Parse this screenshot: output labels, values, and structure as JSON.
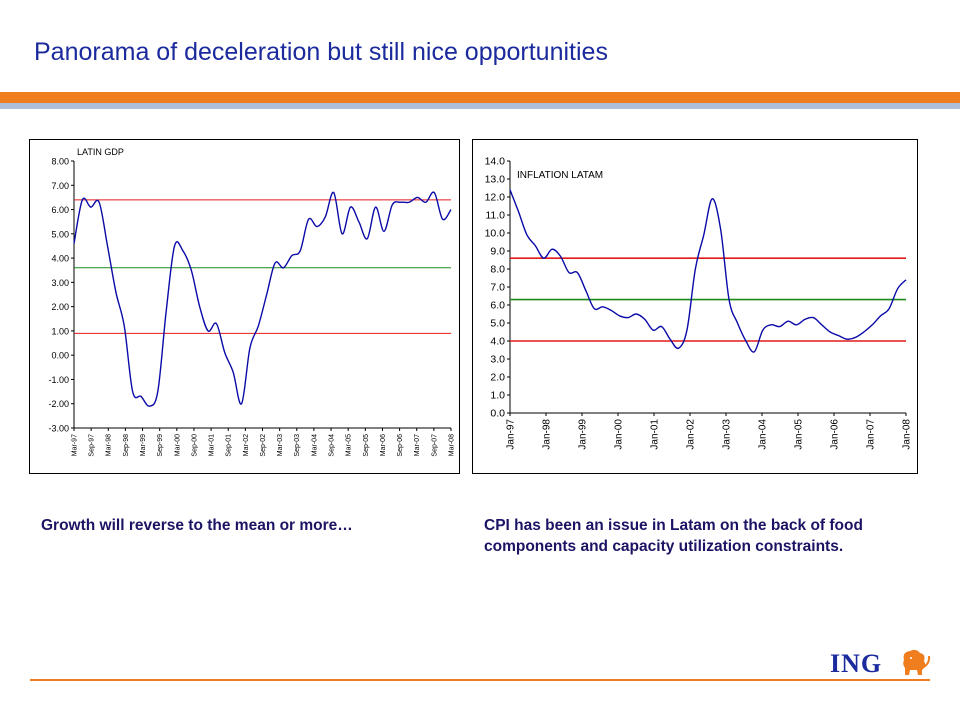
{
  "slide": {
    "title": "Panorama of deceleration but still nice opportunities",
    "caption_left": "Growth will reverse to the mean or more…",
    "caption_right": "CPI has been an issue in Latam on the back of food components and capacity utilization constraints.",
    "logo_text": "ING",
    "colors": {
      "title": "#1b2a9c",
      "accent_orange": "#f07d1e",
      "accent_blue": "#aebfd9",
      "series": "#0a0aa8",
      "line_red": "#e31a1c",
      "line_green": "#1b8a1b"
    }
  },
  "chart_data": [
    {
      "type": "line",
      "title": "LATIN GDP",
      "xlabel": "",
      "ylabel": "",
      "ylim": [
        -3,
        8
      ],
      "y_ticks": [
        -3,
        -2,
        -1,
        0,
        1,
        2,
        3,
        4,
        5,
        6,
        7,
        8
      ],
      "y_tick_labels": [
        "-3.00",
        "-2.00",
        "-1.00",
        "0.00",
        "1.00",
        "2.00",
        "3.00",
        "4.00",
        "5.00",
        "6.00",
        "7.00",
        "8.00"
      ],
      "x_tick_labels": [
        "Mar-97",
        "Sep-97",
        "Mar-98",
        "Sep-98",
        "Mar-99",
        "Sep-99",
        "Mar-00",
        "Sep-00",
        "Mar-01",
        "Sep-01",
        "Mar-02",
        "Sep-02",
        "Mar-03",
        "Sep-03",
        "Mar-04",
        "Sep-04",
        "Mar-05",
        "Sep-05",
        "Mar-06",
        "Sep-06",
        "Mar-07",
        "Sep-07",
        "Mar-08"
      ],
      "grid": false,
      "legend": "none",
      "series": [
        {
          "x": [
            "Mar-97",
            "Jun-97",
            "Sep-97",
            "Dec-97",
            "Mar-98",
            "Jun-98",
            "Sep-98",
            "Dec-98",
            "Mar-99",
            "Jun-99",
            "Sep-99",
            "Dec-99",
            "Mar-00",
            "Jun-00",
            "Sep-00",
            "Dec-00",
            "Mar-01",
            "Jun-01",
            "Sep-01",
            "Dec-01",
            "Mar-02",
            "Jun-02",
            "Sep-02",
            "Dec-02",
            "Mar-03",
            "Jun-03",
            "Sep-03",
            "Dec-03",
            "Mar-04",
            "Jun-04",
            "Sep-04",
            "Dec-04",
            "Mar-05",
            "Jun-05",
            "Sep-05",
            "Dec-05",
            "Mar-06",
            "Jun-06",
            "Sep-06",
            "Dec-06",
            "Mar-07",
            "Jun-07",
            "Sep-07",
            "Dec-07",
            "Mar-08",
            "Jun-08"
          ],
          "values": [
            4.6,
            6.4,
            6.1,
            6.3,
            4.5,
            2.6,
            1.2,
            -1.5,
            -1.7,
            -2.1,
            -1.5,
            1.8,
            4.5,
            4.3,
            3.5,
            2.0,
            1.0,
            1.3,
            0.1,
            -0.7,
            -2.0,
            0.3,
            1.2,
            2.5,
            3.8,
            3.6,
            4.1,
            4.3,
            5.6,
            5.3,
            5.7,
            6.7,
            5.0,
            6.1,
            5.5,
            4.8,
            6.1,
            5.1,
            6.2,
            6.3,
            6.3,
            6.5,
            6.3,
            6.7,
            5.6,
            6.0
          ]
        }
      ],
      "reference_lines": [
        6.4,
        3.6,
        0.9
      ]
    },
    {
      "type": "line",
      "title": "INFLATION LATAM",
      "xlabel": "",
      "ylabel": "",
      "ylim": [
        0,
        14
      ],
      "y_ticks": [
        0,
        1,
        2,
        3,
        4,
        5,
        6,
        7,
        8,
        9,
        10,
        11,
        12,
        13,
        14
      ],
      "y_tick_labels": [
        "0.0",
        "1.0",
        "2.0",
        "3.0",
        "4.0",
        "5.0",
        "6.0",
        "7.0",
        "8.0",
        "9.0",
        "10.0",
        "11.0",
        "12.0",
        "13.0",
        "14.0"
      ],
      "x_tick_labels": [
        "Jan-97",
        "Jan-98",
        "Jan-99",
        "Jan-00",
        "Jan-01",
        "Jan-02",
        "Jan-03",
        "Jan-04",
        "Jan-05",
        "Jan-06",
        "Jan-07",
        "Jan-08"
      ],
      "grid": false,
      "legend": "none",
      "series": [
        {
          "x": [
            "Jan-97",
            "Apr-97",
            "Jul-97",
            "Oct-97",
            "Jan-98",
            "Apr-98",
            "Jul-98",
            "Oct-98",
            "Jan-99",
            "Apr-99",
            "Jul-99",
            "Oct-99",
            "Jan-00",
            "Apr-00",
            "Jul-00",
            "Oct-00",
            "Jan-01",
            "Apr-01",
            "Jul-01",
            "Oct-01",
            "Jan-02",
            "Apr-02",
            "Jul-02",
            "Oct-02",
            "Jan-03",
            "Apr-03",
            "Jul-03",
            "Oct-03",
            "Jan-04",
            "Apr-04",
            "Jul-04",
            "Oct-04",
            "Jan-05",
            "Apr-05",
            "Jul-05",
            "Oct-05",
            "Jan-06",
            "Apr-06",
            "Jul-06",
            "Oct-06",
            "Jan-07",
            "Apr-07",
            "Jul-07",
            "Oct-07",
            "Jan-08",
            "Apr-08",
            "Jul-08",
            "Oct-08"
          ],
          "values": [
            12.4,
            11.2,
            9.9,
            9.3,
            8.6,
            9.1,
            8.7,
            7.8,
            7.8,
            6.8,
            5.8,
            5.9,
            5.7,
            5.4,
            5.3,
            5.5,
            5.2,
            4.6,
            4.8,
            4.1,
            3.6,
            4.6,
            8.0,
            9.9,
            11.9,
            10.2,
            6.3,
            5.0,
            4.0,
            3.4,
            4.6,
            4.9,
            4.8,
            5.1,
            4.9,
            5.2,
            5.3,
            4.9,
            4.5,
            4.3,
            4.1,
            4.2,
            4.5,
            4.9,
            5.4,
            5.8,
            6.9,
            7.4
          ]
        }
      ],
      "reference_lines": [
        8.6,
        6.3,
        4.0
      ]
    }
  ]
}
